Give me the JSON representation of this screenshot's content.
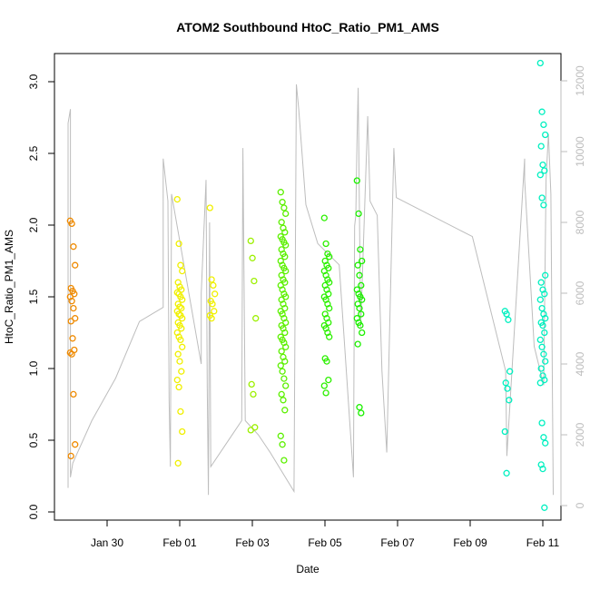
{
  "chart_data": {
    "type": "scatter",
    "title": "ATOM2 Southbound HtoC_Ratio_PM1_AMS",
    "xlabel": "Date",
    "ylabel": "HtoC_Ratio_PM1_AMS",
    "x_ticks": [
      "Jan 30",
      "Feb 01",
      "Feb 03",
      "Feb 05",
      "Feb 07",
      "Feb 09",
      "Feb 11"
    ],
    "y_ticks": [
      "0.0",
      "0.5",
      "1.0",
      "1.5",
      "2.0",
      "2.5",
      "3.0"
    ],
    "y2_ticks": [
      "0",
      "2000",
      "4000",
      "6000",
      "8000",
      "10000",
      "12000"
    ],
    "ylim": [
      0,
      3.2
    ],
    "y2lim": [
      0,
      12300
    ],
    "grid": false,
    "colors": {
      "orange": "#ef8a00",
      "yellow": "#f0f000",
      "green": "#33f000",
      "cyan": "#00f0c0",
      "secondary_line": "#bdbdbd"
    },
    "groups": [
      {
        "date": "Jan 29",
        "color": "#ef8a00",
        "values": [
          2.03,
          2.01,
          1.85,
          1.72,
          1.56,
          1.54,
          1.52,
          1.5,
          1.47,
          1.42,
          1.35,
          1.33,
          1.21,
          1.13,
          1.11,
          1.1,
          0.82,
          0.47,
          0.39
        ]
      },
      {
        "date": "Feb 01",
        "color": "#f0f000",
        "values": [
          2.18,
          1.87,
          1.72,
          1.68,
          1.6,
          1.57,
          1.55,
          1.53,
          1.52,
          1.5,
          1.48,
          1.45,
          1.43,
          1.42,
          1.4,
          1.38,
          1.37,
          1.35,
          1.32,
          1.3,
          1.28,
          1.25,
          1.22,
          1.2,
          1.15,
          1.1,
          1.05,
          0.98,
          0.92,
          0.87,
          0.7,
          0.56,
          0.34
        ]
      },
      {
        "date": "Feb 01 PM",
        "color": "#f0f000",
        "values": [
          2.12,
          1.62,
          1.58,
          1.52,
          1.47,
          1.45,
          1.4,
          1.37,
          1.35
        ]
      },
      {
        "date": "Feb 03",
        "color": "#9cf000",
        "values": [
          1.89,
          1.77,
          1.61,
          1.35,
          0.89,
          0.82,
          0.59,
          0.57
        ]
      },
      {
        "date": "Feb 03 PM",
        "color": "#5cf000",
        "values": [
          2.23,
          2.16,
          2.12,
          2.08,
          2.02,
          1.98,
          1.95,
          1.92,
          1.9,
          1.88,
          1.86,
          1.83,
          1.8,
          1.78,
          1.75,
          1.72,
          1.7,
          1.68,
          1.65,
          1.62,
          1.6,
          1.58,
          1.55,
          1.52,
          1.5,
          1.48,
          1.45,
          1.42,
          1.4,
          1.38,
          1.35,
          1.32,
          1.3,
          1.28,
          1.25,
          1.22,
          1.2,
          1.18,
          1.15,
          1.12,
          1.08,
          1.05,
          1.02,
          0.98,
          0.93,
          0.88,
          0.82,
          0.78,
          0.71,
          0.53,
          0.47,
          0.36
        ]
      },
      {
        "date": "Feb 05",
        "color": "#2cf000",
        "values": [
          2.05,
          1.87,
          1.8,
          1.78,
          1.75,
          1.72,
          1.7,
          1.68,
          1.65,
          1.62,
          1.6,
          1.58,
          1.55,
          1.52,
          1.5,
          1.48,
          1.45,
          1.42,
          1.38,
          1.35,
          1.32,
          1.3,
          1.28,
          1.25,
          1.22,
          1.07,
          1.05,
          0.92,
          0.88,
          0.83
        ]
      },
      {
        "date": "Feb 05 PM",
        "color": "#1cf000",
        "values": [
          2.31,
          2.08,
          1.83,
          1.75,
          1.72,
          1.65,
          1.58,
          1.55,
          1.52,
          1.5,
          1.48,
          1.45,
          1.42,
          1.38,
          1.35,
          1.32,
          1.3,
          1.25,
          1.17,
          0.73,
          0.69
        ]
      },
      {
        "date": "Feb 10",
        "color": "#00f0c0",
        "values": [
          1.4,
          1.38,
          1.34,
          0.98,
          0.9,
          0.86,
          0.78,
          0.56,
          0.27
        ]
      },
      {
        "date": "Feb 11",
        "color": "#00f0c0",
        "values": [
          3.13,
          2.79,
          2.7,
          2.63,
          2.55,
          2.42,
          2.38,
          2.35,
          2.19,
          2.14,
          1.65,
          1.6,
          1.55,
          1.52,
          1.48,
          1.42,
          1.38,
          1.35,
          1.32,
          1.3,
          1.25,
          1.2,
          1.15,
          1.1,
          1.05,
          1.0,
          0.95,
          0.92,
          0.9,
          0.62,
          0.52,
          0.48,
          0.33,
          0.3,
          0.03
        ]
      }
    ],
    "secondary_line": [
      [
        0.0,
        500
      ],
      [
        0.0,
        10800
      ],
      [
        0.1,
        11200
      ],
      [
        0.1,
        800
      ],
      [
        0.2,
        1200
      ],
      [
        1.0,
        2400
      ],
      [
        2.0,
        3600
      ],
      [
        3.0,
        5200
      ],
      [
        4.0,
        5600
      ],
      [
        4.0,
        9800
      ],
      [
        4.2,
        8600
      ],
      [
        4.25,
        3000
      ],
      [
        4.3,
        1100
      ],
      [
        4.35,
        8800
      ],
      [
        5.6,
        4000
      ],
      [
        5.6,
        6000
      ],
      [
        5.8,
        9200
      ],
      [
        5.85,
        3400
      ],
      [
        5.9,
        300
      ],
      [
        5.95,
        8000
      ],
      [
        6.0,
        1100
      ],
      [
        7.3,
        2400
      ],
      [
        7.35,
        10100
      ],
      [
        7.45,
        2400
      ],
      [
        8.0,
        2000
      ],
      [
        8.5,
        1500
      ],
      [
        9.5,
        400
      ],
      [
        9.6,
        11900
      ],
      [
        9.7,
        11200
      ],
      [
        10.0,
        8500
      ],
      [
        10.5,
        7400
      ],
      [
        11.4,
        6800
      ],
      [
        12.0,
        800
      ],
      [
        12.05,
        7900
      ],
      [
        12.1,
        8200
      ],
      [
        12.15,
        10300
      ],
      [
        12.2,
        11800
      ],
      [
        12.3,
        5000
      ],
      [
        12.6,
        11000
      ],
      [
        12.7,
        8600
      ],
      [
        13.0,
        8200
      ],
      [
        13.2,
        3800
      ],
      [
        13.4,
        1500
      ],
      [
        13.7,
        10100
      ],
      [
        13.8,
        8700
      ],
      [
        17.0,
        7600
      ],
      [
        18.4,
        3800
      ],
      [
        18.45,
        1400
      ],
      [
        19.2,
        9800
      ],
      [
        19.2,
        9200
      ],
      [
        19.6,
        4500
      ],
      [
        20.0,
        3400
      ],
      [
        20.1,
        9200
      ],
      [
        20.2,
        10500
      ],
      [
        20.3,
        8800
      ],
      [
        20.4,
        300
      ]
    ]
  }
}
